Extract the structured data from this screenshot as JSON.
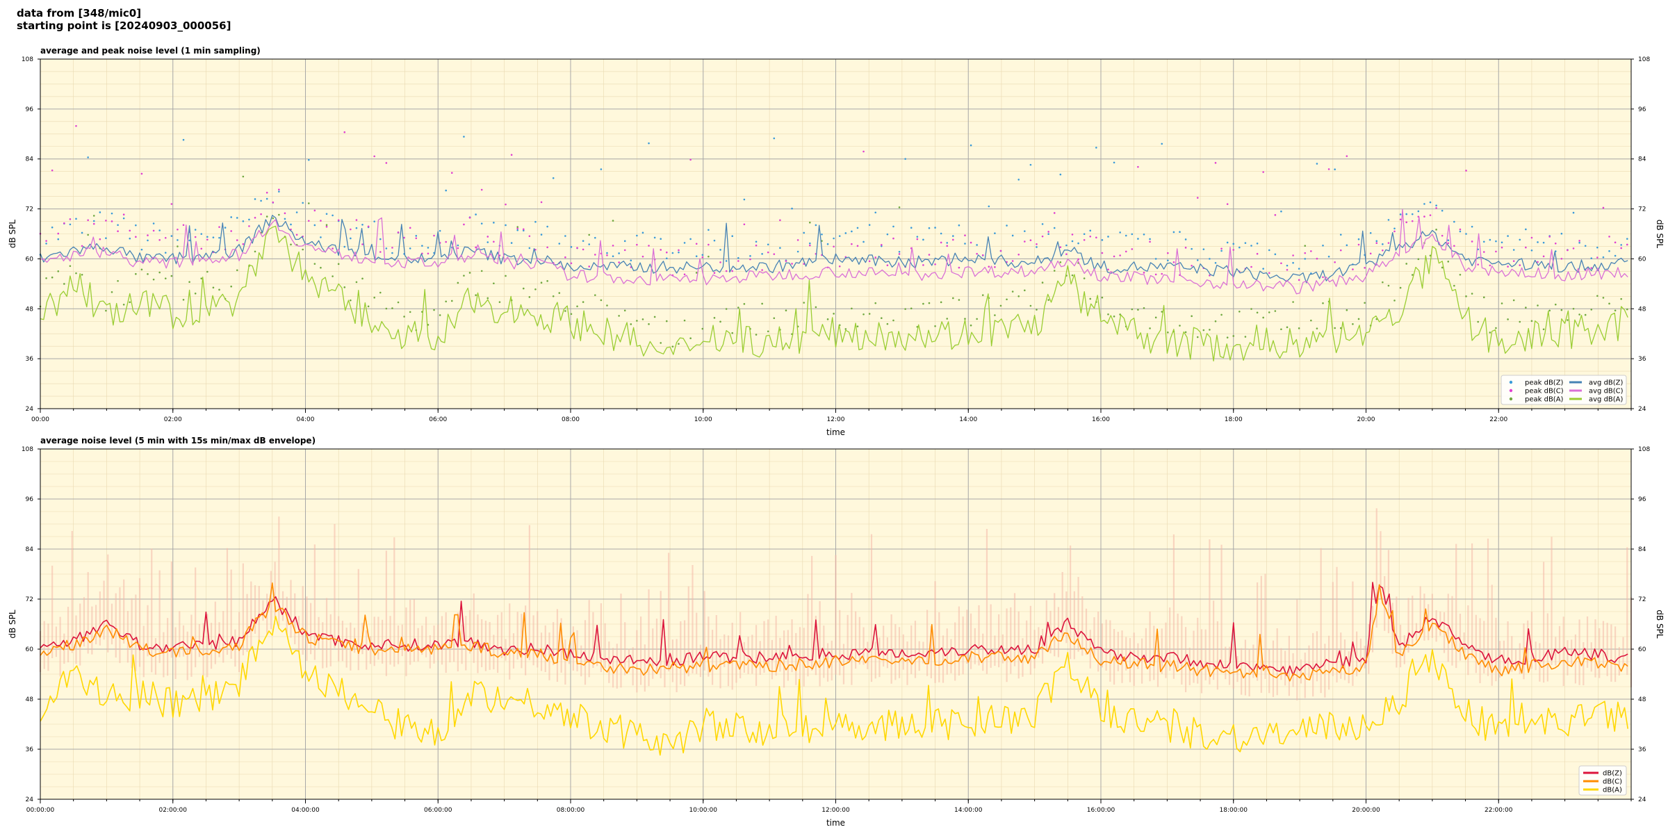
{
  "header": {
    "line1": "data from [348/mic0]",
    "line2": "starting point is [20240903_000056]"
  },
  "chart_data": [
    {
      "type": "line",
      "title": "average and peak noise level (1 min sampling)",
      "xlabel": "time",
      "ylabel": "dB SPL",
      "ylabel_right": "dB SPL",
      "ylim": [
        24,
        108
      ],
      "yticks": [
        "24",
        "36",
        "48",
        "60",
        "72",
        "84",
        "96",
        "108"
      ],
      "xlim_hours": [
        0,
        24
      ],
      "xticks": [
        "00:00",
        "02:00",
        "04:00",
        "06:00",
        "08:00",
        "10:00",
        "12:00",
        "14:00",
        "16:00",
        "18:00",
        "20:00",
        "22:00"
      ],
      "grid": true,
      "legend_position": "lower-right",
      "legend": [
        {
          "label": "peak dB(Z)",
          "kind": "dot",
          "color": "#3a9ad9"
        },
        {
          "label": "peak dB(C)",
          "kind": "dot",
          "color": "#e040d0"
        },
        {
          "label": "peak dB(A)",
          "kind": "dot",
          "color": "#70a840"
        },
        {
          "label": "avg dB(Z)",
          "kind": "line",
          "color": "#4682b4"
        },
        {
          "label": "avg dB(C)",
          "kind": "line",
          "color": "#da70d6"
        },
        {
          "label": "avg dB(A)",
          "kind": "line",
          "color": "#9acd32"
        }
      ],
      "series": [
        {
          "name": "avg dB(Z)",
          "color": "#4682b4",
          "points": [
            [
              0,
              60
            ],
            [
              0.5,
              62
            ],
            [
              1,
              63
            ],
            [
              1.5,
              60
            ],
            [
              2,
              60
            ],
            [
              2.5,
              61
            ],
            [
              3,
              62
            ],
            [
              3.5,
              70
            ],
            [
              4,
              64
            ],
            [
              4.5,
              62
            ],
            [
              5,
              61
            ],
            [
              5.5,
              60
            ],
            [
              6,
              60
            ],
            [
              6.5,
              62
            ],
            [
              7,
              60
            ],
            [
              7.5,
              60
            ],
            [
              8,
              58
            ],
            [
              9,
              58
            ],
            [
              10,
              58
            ],
            [
              11,
              58
            ],
            [
              12,
              60
            ],
            [
              13,
              59
            ],
            [
              14,
              60
            ],
            [
              15,
              59
            ],
            [
              15.5,
              62
            ],
            [
              16,
              58
            ],
            [
              17,
              58
            ],
            [
              18,
              57
            ],
            [
              19,
              55
            ],
            [
              20,
              58
            ],
            [
              20.5,
              63
            ],
            [
              21,
              66
            ],
            [
              21.5,
              60
            ],
            [
              22,
              59
            ],
            [
              23,
              58
            ],
            [
              24,
              59
            ]
          ]
        },
        {
          "name": "avg dB(C)",
          "color": "#da70d6",
          "points": [
            [
              0,
              59
            ],
            [
              0.5,
              61
            ],
            [
              1,
              62
            ],
            [
              1.5,
              59
            ],
            [
              2,
              59
            ],
            [
              2.5,
              60
            ],
            [
              3,
              61
            ],
            [
              3.5,
              69
            ],
            [
              4,
              63
            ],
            [
              4.5,
              61
            ],
            [
              5,
              60
            ],
            [
              5.5,
              59
            ],
            [
              6,
              59
            ],
            [
              6.5,
              61
            ],
            [
              7,
              59
            ],
            [
              7.5,
              59
            ],
            [
              8,
              56
            ],
            [
              9,
              55
            ],
            [
              10,
              55
            ],
            [
              11,
              56
            ],
            [
              12,
              57
            ],
            [
              13,
              56
            ],
            [
              14,
              57
            ],
            [
              15,
              57
            ],
            [
              15.5,
              60
            ],
            [
              16,
              56
            ],
            [
              17,
              55
            ],
            [
              18,
              54
            ],
            [
              19,
              53
            ],
            [
              20,
              56
            ],
            [
              20.5,
              61
            ],
            [
              21,
              65
            ],
            [
              21.5,
              58
            ],
            [
              22,
              57
            ],
            [
              23,
              56
            ],
            [
              24,
              57
            ]
          ]
        },
        {
          "name": "avg dB(A)",
          "color": "#9acd32",
          "points": [
            [
              0,
              45
            ],
            [
              0.5,
              55
            ],
            [
              1,
              46
            ],
            [
              1.5,
              49
            ],
            [
              2,
              47
            ],
            [
              2.5,
              48
            ],
            [
              3,
              50
            ],
            [
              3.5,
              68
            ],
            [
              4,
              56
            ],
            [
              4.5,
              50
            ],
            [
              5,
              45
            ],
            [
              5.5,
              42
            ],
            [
              6,
              40
            ],
            [
              6.5,
              50
            ],
            [
              7,
              48
            ],
            [
              7.5,
              47
            ],
            [
              8,
              45
            ],
            [
              9,
              40
            ],
            [
              9.5,
              36
            ],
            [
              10,
              42
            ],
            [
              11,
              40
            ],
            [
              12,
              42
            ],
            [
              13,
              42
            ],
            [
              14,
              42
            ],
            [
              15,
              44
            ],
            [
              15.5,
              55
            ],
            [
              16,
              44
            ],
            [
              17,
              40
            ],
            [
              18,
              39
            ],
            [
              19,
              40
            ],
            [
              20,
              42
            ],
            [
              20.5,
              48
            ],
            [
              21,
              60
            ],
            [
              21.5,
              45
            ],
            [
              22,
              40
            ],
            [
              23,
              42
            ],
            [
              24,
              44
            ]
          ]
        }
      ]
    },
    {
      "type": "line",
      "title": "average noise level (5 min with 15s min/max dB envelope)",
      "xlabel": "time",
      "ylabel": "dB SPL",
      "ylabel_right": "dB SPL",
      "ylim": [
        24,
        108
      ],
      "yticks": [
        "24",
        "36",
        "48",
        "60",
        "72",
        "84",
        "96",
        "108"
      ],
      "xlim_hours": [
        0,
        24
      ],
      "xticks": [
        "00:00:00",
        "02:00:00",
        "04:00:00",
        "06:00:00",
        "08:00:00",
        "10:00:00",
        "12:00:00",
        "14:00:00",
        "16:00:00",
        "18:00:00",
        "20:00:00",
        "22:00:00"
      ],
      "grid": true,
      "legend_position": "lower-right",
      "legend": [
        {
          "label": "dB(Z)",
          "kind": "line",
          "color": "#dc143c"
        },
        {
          "label": "dB(C)",
          "kind": "line",
          "color": "#ff8c00"
        },
        {
          "label": "dB(A)",
          "kind": "line",
          "color": "#ffd700"
        }
      ],
      "envelope_color": "#f4b8a8",
      "series": [
        {
          "name": "dB(Z)",
          "color": "#dc143c",
          "points": [
            [
              0,
              60
            ],
            [
              0.5,
              62
            ],
            [
              1,
              66
            ],
            [
              1.5,
              61
            ],
            [
              2,
              60
            ],
            [
              2.5,
              61
            ],
            [
              3,
              62
            ],
            [
              3.5,
              72
            ],
            [
              4,
              64
            ],
            [
              4.5,
              62
            ],
            [
              5,
              61
            ],
            [
              5.5,
              61
            ],
            [
              6,
              61
            ],
            [
              6.5,
              62
            ],
            [
              7,
              60
            ],
            [
              7.5,
              60
            ],
            [
              8,
              59
            ],
            [
              9,
              57
            ],
            [
              10,
              58
            ],
            [
              11,
              58
            ],
            [
              12,
              59
            ],
            [
              13,
              59
            ],
            [
              14,
              60
            ],
            [
              15,
              60
            ],
            [
              15.5,
              66
            ],
            [
              16,
              59
            ],
            [
              17,
              58
            ],
            [
              18,
              56
            ],
            [
              19,
              55
            ],
            [
              20,
              58
            ],
            [
              20.2,
              76
            ],
            [
              20.5,
              60
            ],
            [
              21,
              68
            ],
            [
              21.5,
              61
            ],
            [
              22,
              57
            ],
            [
              23,
              59
            ],
            [
              24,
              58
            ]
          ]
        },
        {
          "name": "dB(C)",
          "color": "#ff8c00",
          "points": [
            [
              0,
              59
            ],
            [
              0.5,
              61
            ],
            [
              1,
              65
            ],
            [
              1.5,
              60
            ],
            [
              2,
              59
            ],
            [
              2.5,
              60
            ],
            [
              3,
              61
            ],
            [
              3.5,
              71
            ],
            [
              4,
              63
            ],
            [
              4.5,
              61
            ],
            [
              5,
              60
            ],
            [
              5.5,
              60
            ],
            [
              6,
              60
            ],
            [
              6.5,
              61
            ],
            [
              7,
              59
            ],
            [
              7.5,
              59
            ],
            [
              8,
              57
            ],
            [
              9,
              55
            ],
            [
              10,
              56
            ],
            [
              11,
              56
            ],
            [
              12,
              57
            ],
            [
              13,
              57
            ],
            [
              14,
              58
            ],
            [
              15,
              58
            ],
            [
              15.5,
              64
            ],
            [
              16,
              57
            ],
            [
              17,
              56
            ],
            [
              18,
              54
            ],
            [
              19,
              53
            ],
            [
              20,
              56
            ],
            [
              20.2,
              74
            ],
            [
              20.5,
              58
            ],
            [
              21,
              66
            ],
            [
              21.5,
              59
            ],
            [
              22,
              55
            ],
            [
              23,
              57
            ],
            [
              24,
              56
            ]
          ]
        },
        {
          "name": "dB(A)",
          "color": "#ffd700",
          "points": [
            [
              0,
              46
            ],
            [
              0.5,
              54
            ],
            [
              1,
              48
            ],
            [
              1.5,
              49
            ],
            [
              2,
              47
            ],
            [
              2.5,
              48
            ],
            [
              3,
              52
            ],
            [
              3.5,
              67
            ],
            [
              4,
              56
            ],
            [
              4.5,
              50
            ],
            [
              5,
              45
            ],
            [
              5.5,
              41
            ],
            [
              6,
              40
            ],
            [
              6.5,
              50
            ],
            [
              7,
              48
            ],
            [
              7.5,
              47
            ],
            [
              8,
              44
            ],
            [
              9,
              39
            ],
            [
              9.5,
              37
            ],
            [
              10,
              42
            ],
            [
              11,
              40
            ],
            [
              12,
              42
            ],
            [
              13,
              42
            ],
            [
              14,
              42
            ],
            [
              15,
              44
            ],
            [
              15.5,
              57
            ],
            [
              16,
              45
            ],
            [
              17,
              41
            ],
            [
              18,
              39
            ],
            [
              19,
              40
            ],
            [
              20,
              42
            ],
            [
              20.5,
              48
            ],
            [
              21,
              58
            ],
            [
              21.5,
              45
            ],
            [
              22,
              40
            ],
            [
              23,
              43
            ],
            [
              24,
              44
            ]
          ]
        }
      ]
    }
  ]
}
